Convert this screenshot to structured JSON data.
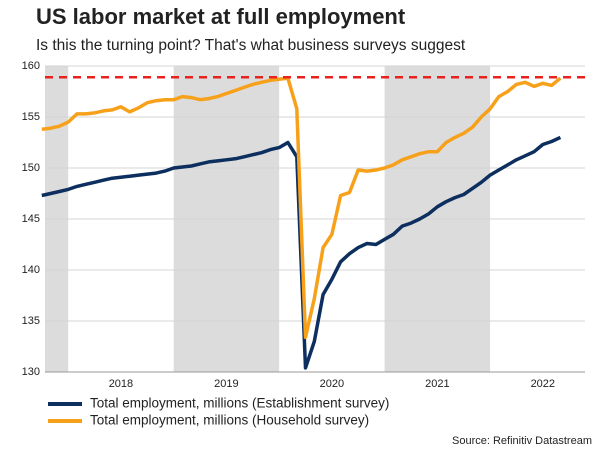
{
  "chart_data": {
    "type": "line",
    "title": "US labor market at full employment",
    "subtitle": "Is this the turning point? That's what business surveys suggest",
    "source": "Source: Refinitiv Datastream",
    "x": [
      2017.75,
      2017.833,
      2017.917,
      2018,
      2018.083,
      2018.167,
      2018.25,
      2018.333,
      2018.417,
      2018.5,
      2018.583,
      2018.667,
      2018.75,
      2018.833,
      2018.917,
      2019,
      2019.083,
      2019.167,
      2019.25,
      2019.333,
      2019.417,
      2019.5,
      2019.583,
      2019.667,
      2019.75,
      2019.833,
      2019.917,
      2020,
      2020.083,
      2020.167,
      2020.25,
      2020.333,
      2020.417,
      2020.5,
      2020.583,
      2020.667,
      2020.75,
      2020.833,
      2020.917,
      2021,
      2021.083,
      2021.167,
      2021.25,
      2021.333,
      2021.417,
      2021.5,
      2021.583,
      2021.667,
      2021.75,
      2021.833,
      2021.917,
      2022,
      2022.083,
      2022.167,
      2022.25,
      2022.333,
      2022.417,
      2022.5,
      2022.583,
      2022.667
    ],
    "series": [
      {
        "name": "Total employment, millions (Establishment survey)",
        "color": "#0d2f5f",
        "values": [
          147.3,
          147.5,
          147.7,
          147.9,
          148.2,
          148.4,
          148.6,
          148.8,
          149.0,
          149.1,
          149.2,
          149.3,
          149.4,
          149.5,
          149.7,
          150.0,
          150.1,
          150.2,
          150.4,
          150.6,
          150.7,
          150.8,
          150.9,
          151.1,
          151.3,
          151.5,
          151.8,
          152.0,
          152.5,
          151.1,
          130.4,
          133.0,
          137.6,
          139.1,
          140.8,
          141.6,
          142.2,
          142.6,
          142.5,
          143.0,
          143.5,
          144.3,
          144.6,
          145.0,
          145.5,
          146.2,
          146.7,
          147.1,
          147.4,
          148.0,
          148.6,
          149.3,
          149.8,
          150.3,
          150.8,
          151.2,
          151.6,
          152.3,
          152.6,
          153.0
        ]
      },
      {
        "name": "Total employment, millions (Household survey)",
        "color": "#f7a11a",
        "values": [
          153.8,
          153.9,
          154.1,
          154.5,
          155.3,
          155.3,
          155.4,
          155.6,
          155.7,
          156.0,
          155.5,
          155.9,
          156.4,
          156.6,
          156.7,
          156.7,
          157.0,
          156.9,
          156.7,
          156.8,
          157.0,
          157.3,
          157.6,
          157.9,
          158.2,
          158.4,
          158.6,
          158.7,
          158.8,
          155.8,
          133.4,
          137.2,
          142.2,
          143.5,
          147.3,
          147.6,
          149.8,
          149.7,
          149.8,
          150.0,
          150.3,
          150.8,
          151.1,
          151.4,
          151.6,
          151.6,
          152.5,
          153.0,
          153.4,
          154.0,
          155.0,
          155.8,
          157.0,
          157.5,
          158.2,
          158.4,
          158.0,
          158.3,
          158.1,
          158.8
        ]
      }
    ],
    "reference_line": {
      "value": 158.9,
      "color": "#e8221c",
      "dashed": true
    },
    "shaded_periods": [
      [
        2017.78,
        2018
      ],
      [
        2019,
        2020
      ],
      [
        2021,
        2022
      ]
    ],
    "shade_color": "#dcdcdc",
    "xlim": [
      2017.78,
      2022.9
    ],
    "xticks": [
      {
        "value": 2018.5,
        "label": "2018"
      },
      {
        "value": 2019.5,
        "label": "2019"
      },
      {
        "value": 2020.5,
        "label": "2020"
      },
      {
        "value": 2021.5,
        "label": "2021"
      },
      {
        "value": 2022.5,
        "label": "2022"
      }
    ],
    "ylim": [
      130,
      160
    ],
    "yticks": [
      130,
      135,
      140,
      145,
      150,
      155,
      160
    ],
    "grid": true,
    "legend": "bottom"
  }
}
